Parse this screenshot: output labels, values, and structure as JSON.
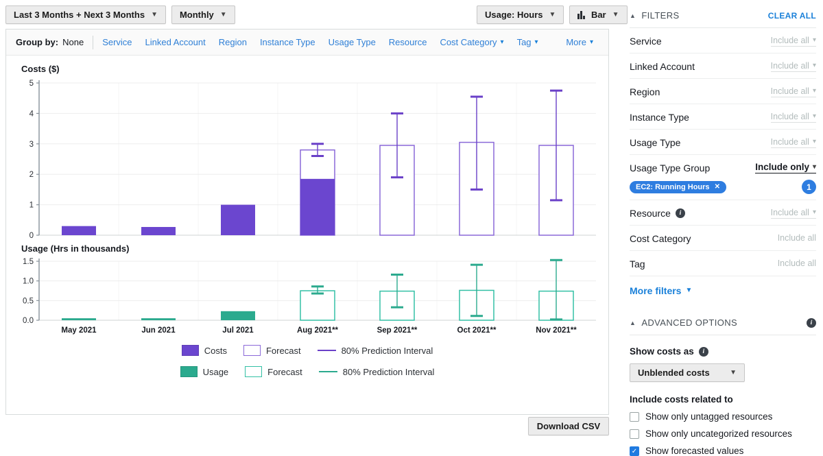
{
  "toolbar": {
    "date_range": "Last 3 Months + Next 3 Months",
    "granularity": "Monthly",
    "usage_unit": "Usage: Hours",
    "chart_type": "Bar"
  },
  "group_by": {
    "label": "Group by:",
    "current": "None",
    "items": [
      {
        "label": "Service",
        "caret": false
      },
      {
        "label": "Linked Account",
        "caret": false
      },
      {
        "label": "Region",
        "caret": false
      },
      {
        "label": "Instance Type",
        "caret": false
      },
      {
        "label": "Usage Type",
        "caret": false
      },
      {
        "label": "Resource",
        "caret": false
      },
      {
        "label": "Cost Category",
        "caret": true
      },
      {
        "label": "Tag",
        "caret": true
      },
      {
        "label": "More",
        "caret": true,
        "align": "right"
      }
    ]
  },
  "chart_data": [
    {
      "type": "bar",
      "title": "Costs ($)",
      "color": "#6b46cf",
      "outline_color": "#8a68d8",
      "interval_color": "#6a40c8",
      "categories": [
        "May 2021",
        "Jun 2021",
        "Jul 2021",
        "Aug 2021**",
        "Sep 2021**",
        "Oct 2021**",
        "Nov 2021**"
      ],
      "series": [
        {
          "name": "Costs",
          "role": "actual",
          "values": [
            0.3,
            0.27,
            1.0,
            1.85,
            null,
            null,
            null
          ]
        },
        {
          "name": "Forecast",
          "role": "forecast",
          "values": [
            null,
            null,
            null,
            2.8,
            2.95,
            3.05,
            2.95
          ]
        },
        {
          "name": "80% Prediction Interval",
          "role": "interval",
          "ranges": [
            null,
            null,
            null,
            [
              2.6,
              3.0
            ],
            [
              1.9,
              4.0
            ],
            [
              1.5,
              4.55
            ],
            [
              1.15,
              4.75
            ]
          ]
        }
      ],
      "ylim": [
        0,
        5
      ],
      "yticks": [
        [
          0,
          "0"
        ],
        [
          1,
          "1"
        ],
        [
          2,
          "2"
        ],
        [
          3,
          "3"
        ],
        [
          4,
          "4"
        ],
        [
          5,
          "5"
        ]
      ],
      "grid": true,
      "legend_position": "bottom"
    },
    {
      "type": "bar",
      "title": "Usage (Hrs in thousands)",
      "color": "#2baa8e",
      "outline_color": "#33c0a5",
      "interval_color": "#2baa8e",
      "categories": [
        "May 2021",
        "Jun 2021",
        "Jul 2021",
        "Aug 2021**",
        "Sep 2021**",
        "Oct 2021**",
        "Nov 2021**"
      ],
      "series": [
        {
          "name": "Usage",
          "role": "actual",
          "values": [
            0.05,
            0.05,
            0.23,
            null,
            null,
            null,
            null
          ]
        },
        {
          "name": "Forecast",
          "role": "forecast",
          "values": [
            null,
            null,
            null,
            0.75,
            0.74,
            0.76,
            0.74
          ]
        },
        {
          "name": "80% Prediction Interval",
          "role": "interval",
          "ranges": [
            null,
            null,
            null,
            [
              0.68,
              0.86
            ],
            [
              0.33,
              1.16
            ],
            [
              0.11,
              1.41
            ],
            [
              0.02,
              1.53
            ]
          ]
        }
      ],
      "ylim": [
        0,
        1.5
      ],
      "yticks": [
        [
          0,
          "0.0"
        ],
        [
          0.5,
          "0.5"
        ],
        [
          1,
          "1.0"
        ],
        [
          1.5,
          "1.5"
        ]
      ],
      "grid": true,
      "legend_position": "bottom"
    }
  ],
  "legend_rows": [
    [
      {
        "swatch": "solid",
        "color": "#6b46cf",
        "label": "Costs"
      },
      {
        "swatch": "outline",
        "color": "#8a68d8",
        "label": "Forecast"
      },
      {
        "swatch": "line",
        "color": "#6a40c8",
        "label": "80% Prediction Interval"
      }
    ],
    [
      {
        "swatch": "solid",
        "color": "#2baa8e",
        "label": "Usage"
      },
      {
        "swatch": "outline",
        "color": "#33c0a5",
        "label": "Forecast"
      },
      {
        "swatch": "line",
        "color": "#2baa8e",
        "label": "80% Prediction Interval"
      }
    ]
  ],
  "filters": {
    "header": "FILTERS",
    "clear_all": "CLEAR ALL",
    "items": [
      {
        "label": "Service",
        "value": "Include all",
        "state": "muted",
        "caret": true
      },
      {
        "label": "Linked Account",
        "value": "Include all",
        "state": "muted",
        "caret": true
      },
      {
        "label": "Region",
        "value": "Include all",
        "state": "muted",
        "caret": true
      },
      {
        "label": "Instance Type",
        "value": "Include all",
        "state": "muted",
        "caret": true
      },
      {
        "label": "Usage Type",
        "value": "Include all",
        "state": "muted",
        "caret": true
      },
      {
        "label": "Usage Type Group",
        "value": "Include only",
        "state": "active",
        "caret": true,
        "tag": "EC2: Running Hours",
        "count": "1"
      },
      {
        "label": "Resource",
        "info": true,
        "value": "Include all",
        "state": "muted",
        "caret": true
      },
      {
        "label": "Cost Category",
        "value": "Include all",
        "state": "muted",
        "caret": false
      },
      {
        "label": "Tag",
        "value": "Include all",
        "state": "muted",
        "caret": false
      }
    ],
    "more_filters": "More filters"
  },
  "advanced": {
    "header": "ADVANCED OPTIONS",
    "show_costs_as": "Show costs as",
    "costs_dropdown": "Unblended costs",
    "include_costs": "Include costs related to",
    "checkboxes": [
      {
        "label": "Show only untagged resources",
        "checked": false
      },
      {
        "label": "Show only uncategorized resources",
        "checked": false
      },
      {
        "label": "Show forecasted values",
        "checked": true
      }
    ]
  },
  "download_csv": "Download CSV"
}
